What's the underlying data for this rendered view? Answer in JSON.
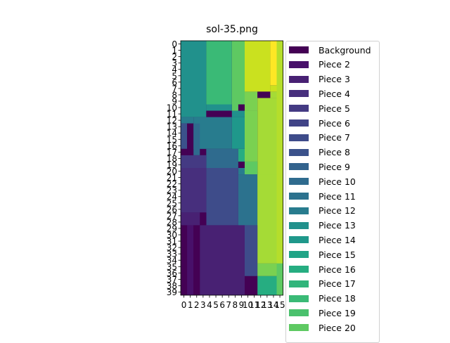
{
  "title": "sol-35.png",
  "chart_data": {
    "type": "heatmap",
    "title": "sol-35.png",
    "x_ticks": [
      "0",
      "1",
      "2",
      "3",
      "4",
      "5",
      "6",
      "7",
      "8",
      "9",
      "10",
      "11",
      "12",
      "13",
      "14",
      "15"
    ],
    "y_ticks": [
      "0",
      "1",
      "2",
      "3",
      "4",
      "5",
      "6",
      "7",
      "8",
      "9",
      "10",
      "11",
      "12",
      "13",
      "14",
      "15",
      "16",
      "17",
      "18",
      "19",
      "20",
      "21",
      "22",
      "23",
      "24",
      "25",
      "26",
      "27",
      "28",
      "29",
      "30",
      "31",
      "32",
      "33",
      "34",
      "35",
      "36",
      "37",
      "38",
      "39"
    ],
    "legend": [
      {
        "label": "Background",
        "color": "#440154"
      },
      {
        "label": "Piece 2",
        "color": "#48106a"
      },
      {
        "label": "Piece 3",
        "color": "#482173"
      },
      {
        "label": "Piece 4",
        "color": "#472f7d"
      },
      {
        "label": "Piece 5",
        "color": "#443a83"
      },
      {
        "label": "Piece 6",
        "color": "#414487"
      },
      {
        "label": "Piece 7",
        "color": "#3e4c8a"
      },
      {
        "label": "Piece 8",
        "color": "#3b528b"
      },
      {
        "label": "Piece 9",
        "color": "#33638d"
      },
      {
        "label": "Piece 10",
        "color": "#2f6b8e"
      },
      {
        "label": "Piece 11",
        "color": "#2c728e"
      },
      {
        "label": "Piece 12",
        "color": "#287c8e"
      },
      {
        "label": "Piece 13",
        "color": "#21918c"
      },
      {
        "label": "Piece 14",
        "color": "#1f988b"
      },
      {
        "label": "Piece 15",
        "color": "#20a486"
      },
      {
        "label": "Piece 16",
        "color": "#26ad81"
      },
      {
        "label": "Piece 17",
        "color": "#31b57b"
      },
      {
        "label": "Piece 18",
        "color": "#3aba76"
      },
      {
        "label": "Piece 19",
        "color": "#4ac16d"
      },
      {
        "label": "Piece 20",
        "color": "#5ec962"
      }
    ],
    "extra_colors": [
      "#7ad151",
      "#a5db36",
      "#b5de2b",
      "#cae11f",
      "#fde725"
    ],
    "regions": [
      {
        "x": [
          0,
          4
        ],
        "y": [
          0,
          12
        ],
        "color": "#21918c"
      },
      {
        "x": [
          4,
          8
        ],
        "y": [
          0,
          10
        ],
        "color": "#3aba76"
      },
      {
        "x": [
          8,
          10
        ],
        "y": [
          0,
          10
        ],
        "color": "#5ec962"
      },
      {
        "x": [
          10,
          14
        ],
        "y": [
          0,
          8
        ],
        "color": "#cae11f"
      },
      {
        "x": [
          14,
          15
        ],
        "y": [
          0,
          7
        ],
        "color": "#fde725"
      },
      {
        "x": [
          14,
          15
        ],
        "y": [
          7,
          8
        ],
        "color": "#cae11f"
      },
      {
        "x": [
          15,
          16
        ],
        "y": [
          0,
          40
        ],
        "color": "#b5de2b"
      },
      {
        "x": [
          10,
          12
        ],
        "y": [
          8,
          11
        ],
        "color": "#7ad151"
      },
      {
        "x": [
          12,
          14
        ],
        "y": [
          8,
          9
        ],
        "color": "#440154"
      },
      {
        "x": [
          14,
          15
        ],
        "y": [
          8,
          9
        ],
        "color": "#a5db36"
      },
      {
        "x": [
          12,
          15
        ],
        "y": [
          9,
          35
        ],
        "color": "#a5db36"
      },
      {
        "x": [
          8,
          10
        ],
        "y": [
          10,
          11
        ],
        "color": "#5ec962"
      },
      {
        "x": [
          10,
          10
        ],
        "y": [
          10,
          11
        ],
        "color": "#440154"
      },
      {
        "x": [
          9,
          10
        ],
        "y": [
          10,
          11
        ],
        "color": "#440154"
      },
      {
        "x": [
          4,
          8
        ],
        "y": [
          10,
          11
        ],
        "color": "#21918c"
      },
      {
        "x": [
          4,
          8
        ],
        "y": [
          11,
          12
        ],
        "color": "#440154"
      },
      {
        "x": [
          8,
          10
        ],
        "y": [
          11,
          12
        ],
        "color": "#21918c"
      },
      {
        "x": [
          10,
          12
        ],
        "y": [
          11,
          19
        ],
        "color": "#7ad151"
      },
      {
        "x": [
          0,
          2
        ],
        "y": [
          12,
          13
        ],
        "color": "#287c8e"
      },
      {
        "x": [
          2,
          8
        ],
        "y": [
          12,
          17
        ],
        "color": "#287c8e"
      },
      {
        "x": [
          8,
          10
        ],
        "y": [
          12,
          17
        ],
        "color": "#1f988b"
      },
      {
        "x": [
          0,
          1
        ],
        "y": [
          13,
          17
        ],
        "color": "#3b528b"
      },
      {
        "x": [
          1,
          2
        ],
        "y": [
          13,
          18
        ],
        "color": "#440154"
      },
      {
        "x": [
          2,
          3
        ],
        "y": [
          13,
          18
        ],
        "color": "#2f6b8e"
      },
      {
        "x": [
          3,
          4
        ],
        "y": [
          13,
          18
        ],
        "color": "#287c8e"
      },
      {
        "x": [
          0,
          1
        ],
        "y": [
          17,
          18
        ],
        "color": "#440154"
      },
      {
        "x": [
          3,
          4
        ],
        "y": [
          17,
          18
        ],
        "color": "#440154"
      },
      {
        "x": [
          4,
          9
        ],
        "y": [
          17,
          20
        ],
        "color": "#2f6b8e"
      },
      {
        "x": [
          9,
          10
        ],
        "y": [
          17,
          19
        ],
        "color": "#26ad81"
      },
      {
        "x": [
          0,
          4
        ],
        "y": [
          18,
          20
        ],
        "color": "#443a83"
      },
      {
        "x": [
          9,
          10
        ],
        "y": [
          19,
          21
        ],
        "color": "#287c8e"
      },
      {
        "x": [
          9,
          10
        ],
        "y": [
          19,
          20
        ],
        "color": "#440154"
      },
      {
        "x": [
          10,
          12
        ],
        "y": [
          19,
          21
        ],
        "color": "#5ec962"
      },
      {
        "x": [
          0,
          4
        ],
        "y": [
          20,
          27
        ],
        "color": "#472f7d"
      },
      {
        "x": [
          4,
          9
        ],
        "y": [
          20,
          29
        ],
        "color": "#3e4c8a"
      },
      {
        "x": [
          9,
          12
        ],
        "y": [
          21,
          29
        ],
        "color": "#2c728e"
      },
      {
        "x": [
          12,
          15
        ],
        "y": [
          21,
          35
        ],
        "color": "#a5db36"
      },
      {
        "x": [
          0,
          3
        ],
        "y": [
          27,
          29
        ],
        "color": "#482173"
      },
      {
        "x": [
          3,
          4
        ],
        "y": [
          27,
          29
        ],
        "color": "#440154"
      },
      {
        "x": [
          0,
          1
        ],
        "y": [
          29,
          40
        ],
        "color": "#440154"
      },
      {
        "x": [
          1,
          2
        ],
        "y": [
          29,
          40
        ],
        "color": "#48106a"
      },
      {
        "x": [
          2,
          3
        ],
        "y": [
          29,
          40
        ],
        "color": "#440154"
      },
      {
        "x": [
          3,
          10
        ],
        "y": [
          29,
          40
        ],
        "color": "#482173"
      },
      {
        "x": [
          10,
          12
        ],
        "y": [
          29,
          37
        ],
        "color": "#3e4c8a"
      },
      {
        "x": [
          12,
          15
        ],
        "y": [
          35,
          37
        ],
        "color": "#7ad151"
      },
      {
        "x": [
          15,
          16
        ],
        "y": [
          35,
          40
        ],
        "color": "#5ec962"
      },
      {
        "x": [
          10,
          12
        ],
        "y": [
          37,
          40
        ],
        "color": "#440154"
      },
      {
        "x": [
          12,
          15
        ],
        "y": [
          37,
          40
        ],
        "color": "#26ad81"
      }
    ]
  }
}
